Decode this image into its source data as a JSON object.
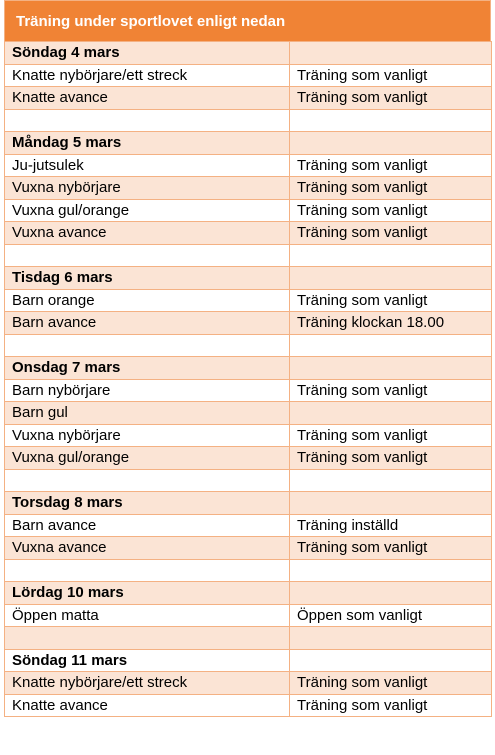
{
  "title": "Träning under sportlovet enligt nedan",
  "colors": {
    "header_bg": "#f08335",
    "header_text": "#ffffff",
    "row_shade": "#fbe4d5",
    "row_plain": "#ffffff",
    "border": "#f4b183"
  },
  "rows": [
    {
      "kind": "day",
      "shade": true,
      "col1": "Söndag 4 mars",
      "col2": ""
    },
    {
      "kind": "item",
      "shade": false,
      "col1": "Knatte nybörjare/ett streck",
      "col2": "Träning som vanligt"
    },
    {
      "kind": "item",
      "shade": true,
      "col1": "Knatte avance",
      "col2": "Träning som vanligt"
    },
    {
      "kind": "blank",
      "shade": false,
      "col1": "",
      "col2": ""
    },
    {
      "kind": "day",
      "shade": true,
      "col1": "Måndag 5 mars",
      "col2": ""
    },
    {
      "kind": "item",
      "shade": false,
      "col1": "Ju-jutsulek",
      "col2": "Träning som vanligt"
    },
    {
      "kind": "item",
      "shade": true,
      "col1": "Vuxna nybörjare",
      "col2": "Träning som vanligt"
    },
    {
      "kind": "item",
      "shade": false,
      "col1": "Vuxna gul/orange",
      "col2": "Träning som vanligt"
    },
    {
      "kind": "item",
      "shade": true,
      "col1": "Vuxna avance",
      "col2": "Träning som vanligt"
    },
    {
      "kind": "blank",
      "shade": false,
      "col1": "",
      "col2": ""
    },
    {
      "kind": "day",
      "shade": true,
      "col1": "Tisdag 6 mars",
      "col2": ""
    },
    {
      "kind": "item",
      "shade": false,
      "col1": "Barn orange",
      "col2": "Träning som vanligt"
    },
    {
      "kind": "item",
      "shade": true,
      "col1": "Barn avance",
      "col2": "Träning klockan 18.00"
    },
    {
      "kind": "blank",
      "shade": false,
      "col1": "",
      "col2": ""
    },
    {
      "kind": "day",
      "shade": true,
      "col1": "Onsdag 7 mars",
      "col2": ""
    },
    {
      "kind": "item",
      "shade": false,
      "col1": "Barn nybörjare",
      "col2": "Träning som vanligt"
    },
    {
      "kind": "item",
      "shade": true,
      "col1": "Barn gul",
      "col2": ""
    },
    {
      "kind": "item",
      "shade": false,
      "col1": "Vuxna nybörjare",
      "col2": "Träning som vanligt"
    },
    {
      "kind": "item",
      "shade": true,
      "col1": "Vuxna gul/orange",
      "col2": "Träning som vanligt"
    },
    {
      "kind": "blank",
      "shade": false,
      "col1": "",
      "col2": ""
    },
    {
      "kind": "day",
      "shade": true,
      "col1": "Torsdag 8 mars",
      "col2": ""
    },
    {
      "kind": "item",
      "shade": false,
      "col1": "Barn avance",
      "col2": "Träning inställd"
    },
    {
      "kind": "item",
      "shade": true,
      "col1": "Vuxna avance",
      "col2": "Träning som vanligt"
    },
    {
      "kind": "blank",
      "shade": false,
      "col1": "",
      "col2": ""
    },
    {
      "kind": "day",
      "shade": true,
      "col1": "Lördag 10 mars",
      "col2": ""
    },
    {
      "kind": "item",
      "shade": false,
      "col1": "Öppen matta",
      "col2": "Öppen som vanligt"
    },
    {
      "kind": "blank",
      "shade": true,
      "col1": "",
      "col2": ""
    },
    {
      "kind": "day",
      "shade": false,
      "col1": "Söndag 11 mars",
      "col2": ""
    },
    {
      "kind": "item",
      "shade": true,
      "col1": "Knatte nybörjare/ett streck",
      "col2": "Träning som vanligt"
    },
    {
      "kind": "item",
      "shade": false,
      "col1": "Knatte avance",
      "col2": "Träning som vanligt"
    }
  ]
}
